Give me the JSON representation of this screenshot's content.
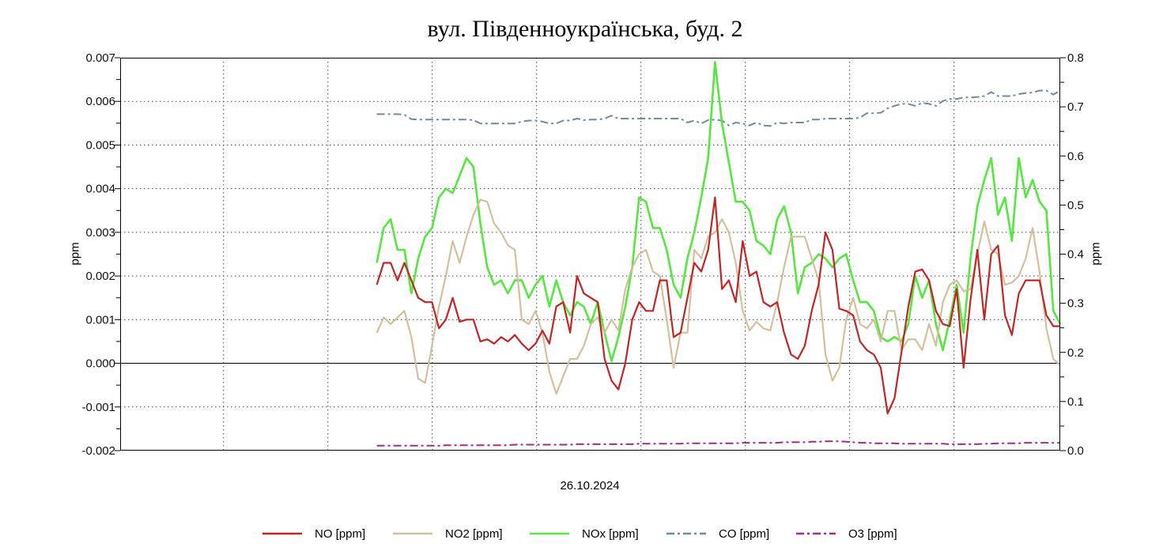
{
  "title": "вул. Південноукраїнська, буд. 2",
  "x_axis": {
    "label": "26.10.2024"
  },
  "left_axis": {
    "label": "ppm",
    "min": -0.002,
    "max": 0.007,
    "major_step": 0.001,
    "minor_step": 0.0005,
    "ticks": [
      "0.007",
      "0.006",
      "0.005",
      "0.004",
      "0.003",
      "0.002",
      "0.001",
      "0.000",
      "-0.001",
      "-0.002"
    ]
  },
  "right_axis": {
    "label": "ppm",
    "min": 0.0,
    "max": 0.8,
    "major_step": 0.1,
    "minor_step": 0.05,
    "ticks": [
      "0.8",
      "0.7",
      "0.6",
      "0.5",
      "0.4",
      "0.3",
      "0.2",
      "0.1",
      "0.0"
    ]
  },
  "grid": {
    "v_fractions": [
      0.11,
      0.221,
      0.332,
      0.443,
      0.554,
      0.665,
      0.776,
      0.887
    ],
    "zero_line": 0.0
  },
  "legend": [
    {
      "label": "NO [ppm]",
      "color": "#c32424",
      "dash": "solid"
    },
    {
      "label": "NO2 [ppm]",
      "color": "#d3bf9b",
      "dash": "solid"
    },
    {
      "label": "NOx [ppm]",
      "color": "#54e83e",
      "dash": "solid"
    },
    {
      "label": "CO [ppm]",
      "color": "#6b8ba4",
      "dash": "dashdot"
    },
    {
      "label": "O3 [ppm]",
      "color": "#a5298b",
      "dash": "dashdot"
    }
  ],
  "chart_data": {
    "type": "line",
    "title": "вул. Південноукраїнська, буд. 2",
    "xlabel": "26.10.2024",
    "ylabel_left": "ppm",
    "ylabel_right": "ppm",
    "ylim_left": [
      -0.002,
      0.007
    ],
    "ylim_right": [
      0.0,
      0.8
    ],
    "x_start_fraction": 0.273,
    "x_end_fraction": 1.0,
    "series": [
      {
        "name": "CO [ppm]",
        "axis": "right",
        "color": "#6b8ba4",
        "dash": "dashdot",
        "width": 2,
        "values": [
          0.685,
          0.685,
          0.685,
          0.685,
          0.684,
          0.675,
          0.674,
          0.674,
          0.674,
          0.674,
          0.674,
          0.674,
          0.674,
          0.674,
          0.673,
          0.666,
          0.666,
          0.666,
          0.666,
          0.666,
          0.666,
          0.67,
          0.672,
          0.672,
          0.67,
          0.666,
          0.666,
          0.672,
          0.672,
          0.676,
          0.673,
          0.674,
          0.674,
          0.676,
          0.682,
          0.676,
          0.676,
          0.676,
          0.676,
          0.676,
          0.676,
          0.676,
          0.676,
          0.676,
          0.676,
          0.668,
          0.672,
          0.666,
          0.673,
          0.674,
          0.672,
          0.662,
          0.668,
          0.666,
          0.662,
          0.668,
          0.662,
          0.661,
          0.668,
          0.666,
          0.668,
          0.668,
          0.668,
          0.674,
          0.674,
          0.676,
          0.676,
          0.676,
          0.676,
          0.676,
          0.678,
          0.687,
          0.687,
          0.688,
          0.697,
          0.702,
          0.706,
          0.706,
          0.702,
          0.708,
          0.706,
          0.702,
          0.712,
          0.716,
          0.716,
          0.719,
          0.719,
          0.72,
          0.722,
          0.73,
          0.722,
          0.722,
          0.722,
          0.726,
          0.728,
          0.729,
          0.733,
          0.733,
          0.725,
          0.733
        ]
      },
      {
        "name": "O3 [ppm]",
        "axis": "right",
        "color": "#a5298b",
        "dash": "dashdot",
        "width": 2,
        "values": [
          0.01,
          0.01,
          0.01,
          0.01,
          0.01,
          0.01,
          0.01,
          0.01,
          0.01,
          0.01,
          0.011,
          0.011,
          0.011,
          0.011,
          0.011,
          0.011,
          0.011,
          0.011,
          0.011,
          0.011,
          0.012,
          0.012,
          0.012,
          0.012,
          0.012,
          0.012,
          0.012,
          0.012,
          0.012,
          0.013,
          0.013,
          0.013,
          0.013,
          0.013,
          0.013,
          0.013,
          0.013,
          0.013,
          0.014,
          0.014,
          0.014,
          0.014,
          0.014,
          0.014,
          0.014,
          0.015,
          0.015,
          0.015,
          0.015,
          0.015,
          0.015,
          0.015,
          0.015,
          0.016,
          0.016,
          0.016,
          0.016,
          0.016,
          0.016,
          0.017,
          0.017,
          0.017,
          0.017,
          0.018,
          0.018,
          0.019,
          0.019,
          0.019,
          0.018,
          0.017,
          0.016,
          0.016,
          0.015,
          0.015,
          0.015,
          0.015,
          0.014,
          0.014,
          0.014,
          0.014,
          0.014,
          0.014,
          0.014,
          0.013,
          0.013,
          0.013,
          0.013,
          0.013,
          0.014,
          0.014,
          0.015,
          0.015,
          0.015,
          0.015,
          0.016,
          0.016,
          0.016,
          0.016,
          0.016,
          0.016
        ]
      },
      {
        "name": "NOx [ppm]",
        "axis": "left",
        "color": "#54e83e",
        "dash": "solid",
        "width": 2.6,
        "values": [
          0.0023,
          0.0031,
          0.0033,
          0.0026,
          0.0026,
          0.0016,
          0.0024,
          0.0029,
          0.0031,
          0.0038,
          0.004,
          0.0039,
          0.0043,
          0.0047,
          0.0045,
          0.0032,
          0.0022,
          0.0018,
          0.0019,
          0.0016,
          0.0019,
          0.0019,
          0.0015,
          0.0018,
          0.002,
          0.0013,
          0.0019,
          0.0014,
          0.0011,
          0.0014,
          0.0013,
          0.0009,
          0.0014,
          0.0007,
          5e-05,
          0.0006,
          0.0013,
          0.0022,
          0.0038,
          0.0037,
          0.0031,
          0.0031,
          0.0026,
          0.0018,
          0.0015,
          0.0024,
          0.003,
          0.0038,
          0.0047,
          0.0069,
          0.0055,
          0.0046,
          0.0037,
          0.0037,
          0.0035,
          0.0028,
          0.0027,
          0.0025,
          0.0033,
          0.0036,
          0.003,
          0.0016,
          0.0022,
          0.0023,
          0.0025,
          0.0024,
          0.0022,
          0.0024,
          0.0025,
          0.0019,
          0.0014,
          0.0014,
          0.0012,
          0.0006,
          0.0005,
          0.0006,
          0.0005,
          0.0009,
          0.002,
          0.0015,
          0.0019,
          0.0009,
          0.0003,
          0.001,
          0.0018,
          0.0007,
          0.0024,
          0.0036,
          0.0042,
          0.0047,
          0.0034,
          0.0038,
          0.0028,
          0.0047,
          0.0038,
          0.0042,
          0.0037,
          0.0035,
          0.0012,
          0.0009
        ]
      },
      {
        "name": "NO2 [ppm]",
        "axis": "left",
        "color": "#d3bf9b",
        "dash": "solid",
        "width": 2.2,
        "values": [
          0.0007,
          0.00105,
          0.0009,
          0.00105,
          0.0012,
          0.0006,
          -0.00035,
          -0.00045,
          0.0004,
          0.0013,
          0.002,
          0.0028,
          0.0023,
          0.0029,
          0.0034,
          0.00375,
          0.0037,
          0.0032,
          0.003,
          0.0027,
          0.0026,
          0.001,
          0.0009,
          0.0012,
          0.0007,
          -0.0002,
          -0.0007,
          -0.0003,
          0.0001,
          0.0001,
          0.0004,
          0.0009,
          0.00105,
          0.0007,
          0.001,
          0.00075,
          0.0017,
          0.0022,
          0.0025,
          0.0026,
          0.0021,
          0.002,
          0.001,
          -0.0001,
          0.0007,
          0.0007,
          0.0026,
          0.0024,
          0.0029,
          0.003,
          0.0033,
          0.003,
          0.0023,
          0.0012,
          0.00075,
          0.00095,
          0.0008,
          0.00075,
          0.0014,
          0.0022,
          0.0029,
          0.0029,
          0.0029,
          0.0024,
          0.0019,
          0.0002,
          -0.0004,
          -0.0001,
          0.001,
          0.0015,
          0.0009,
          0.0008,
          0.001,
          0.0005,
          0.0012,
          0.0012,
          0.0003,
          0.00055,
          0.00055,
          0.0003,
          0.0009,
          0.0004,
          0.0014,
          0.0018,
          0.0019,
          0.00165,
          0.0017,
          0.0025,
          0.00325,
          0.0026,
          0.0025,
          0.0018,
          0.00185,
          0.002,
          0.0024,
          0.0031,
          0.0021,
          0.0008,
          0.0001,
          -5e-05
        ]
      },
      {
        "name": "NO [ppm]",
        "axis": "left",
        "color": "#c32424",
        "dash": "solid",
        "width": 2.2,
        "values": [
          0.0018,
          0.0023,
          0.0023,
          0.0019,
          0.0023,
          0.0019,
          0.0015,
          0.0014,
          0.0014,
          0.0008,
          0.001,
          0.0015,
          0.00095,
          0.001,
          0.001,
          0.0005,
          0.00055,
          0.00045,
          0.0006,
          0.0005,
          0.00065,
          0.00045,
          0.0003,
          0.00045,
          0.00075,
          0.00045,
          0.0013,
          0.0014,
          0.0007,
          0.002,
          0.0016,
          0.0015,
          0.0014,
          0.0001,
          -0.0004,
          -0.0006,
          0.0,
          0.001,
          0.0014,
          0.0012,
          0.0012,
          0.0019,
          0.0019,
          0.0006,
          0.0007,
          0.0015,
          0.0023,
          0.0021,
          0.0026,
          0.0038,
          0.0017,
          0.0019,
          0.0014,
          0.0028,
          0.002,
          0.0021,
          0.0014,
          0.0013,
          0.0014,
          0.0007,
          0.0002,
          0.0001,
          0.0004,
          0.0012,
          0.0018,
          0.003,
          0.0026,
          0.00125,
          0.0012,
          0.0011,
          0.0005,
          0.0003,
          0.0002,
          -0.0001,
          -0.00115,
          -0.0008,
          0.00025,
          0.0013,
          0.0021,
          0.00215,
          0.0019,
          0.0012,
          0.0009,
          0.00085,
          0.0017,
          -0.0001,
          0.00145,
          0.0026,
          0.001,
          0.0025,
          0.0027,
          0.0011,
          0.00065,
          0.0016,
          0.0019,
          0.0019,
          0.0019,
          0.0011,
          0.00085,
          0.00085
        ]
      }
    ]
  }
}
